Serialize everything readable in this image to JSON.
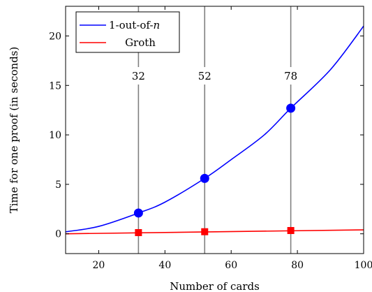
{
  "chart_data": {
    "type": "line",
    "xlabel": "Number of cards",
    "ylabel": "Time for one proof (in seconds)",
    "xlim": [
      10,
      100
    ],
    "ylim": [
      -2,
      23
    ],
    "xticks": [
      20,
      40,
      60,
      80,
      100
    ],
    "yticks": [
      0,
      5,
      10,
      15,
      20
    ],
    "grid": false,
    "legend": "top-left",
    "vlines": [
      {
        "x": 32,
        "label": "32"
      },
      {
        "x": 52,
        "label": "52"
      },
      {
        "x": 78,
        "label": "78"
      }
    ],
    "series": [
      {
        "name": "1-out-of-n",
        "name_main": "1-out-of-",
        "name_italic": "n",
        "color": "#0000ff",
        "marker": "circle",
        "curve": [
          [
            10,
            0.2
          ],
          [
            20,
            0.75
          ],
          [
            32,
            2.1
          ],
          [
            40,
            3.2
          ],
          [
            52,
            5.6
          ],
          [
            60,
            7.5
          ],
          [
            70,
            10.0
          ],
          [
            78,
            12.7
          ],
          [
            90,
            16.6
          ],
          [
            100,
            21.0
          ]
        ],
        "points": [
          [
            32,
            2.1
          ],
          [
            52,
            5.6
          ],
          [
            78,
            12.7
          ]
        ]
      },
      {
        "name": "Groth",
        "color": "#ff0000",
        "marker": "square",
        "curve": [
          [
            10,
            0.0
          ],
          [
            100,
            0.4
          ]
        ],
        "points": [
          [
            32,
            0.12
          ],
          [
            52,
            0.21
          ],
          [
            78,
            0.33
          ]
        ]
      }
    ]
  }
}
